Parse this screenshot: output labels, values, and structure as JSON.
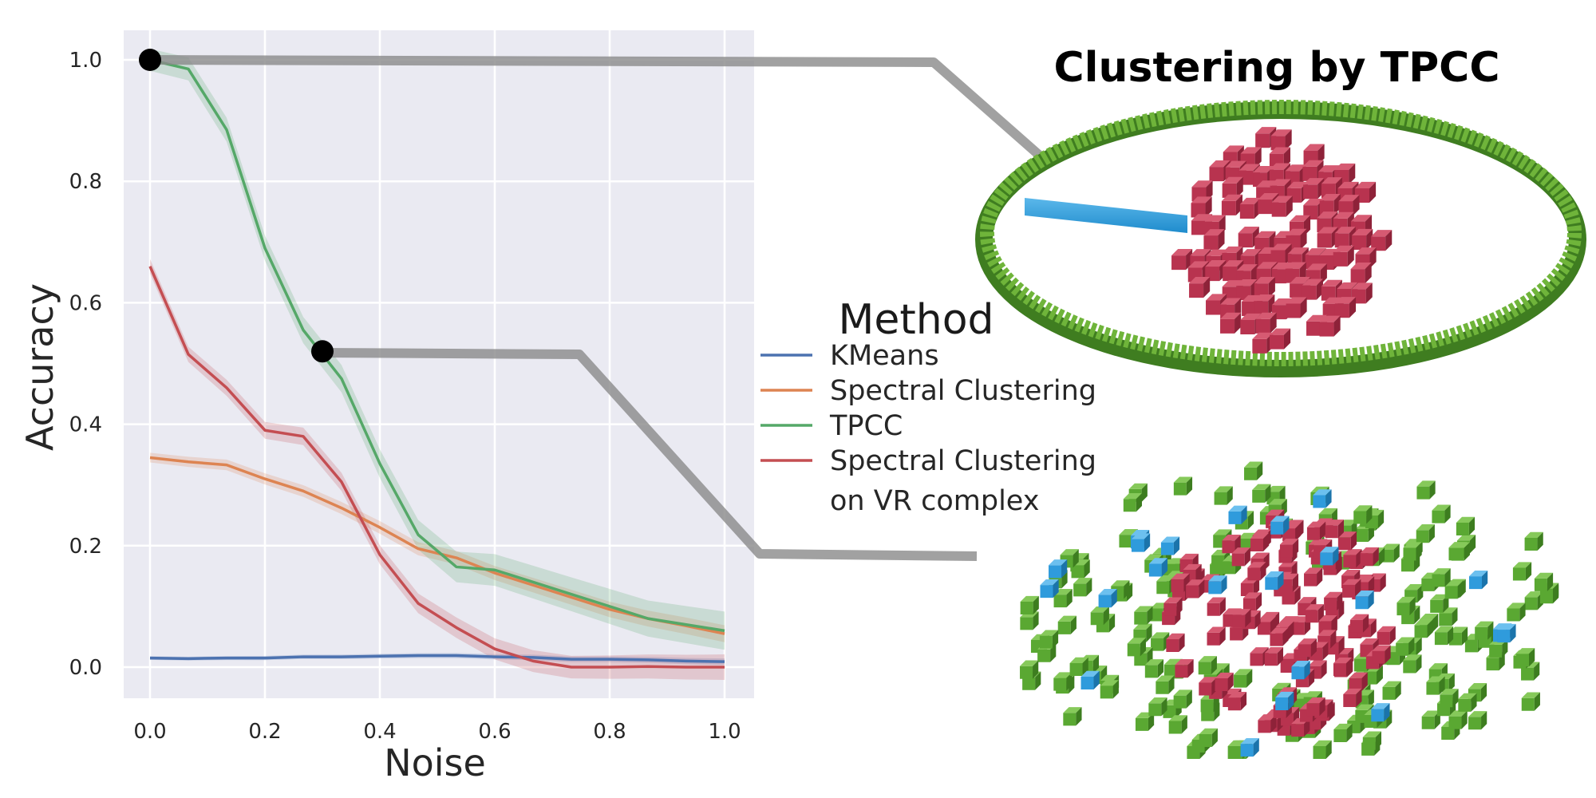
{
  "chart_data": {
    "type": "line",
    "title": "Clustering by TPCC",
    "xlabel": "Noise",
    "ylabel": "Accuracy",
    "xlim": [
      0.0,
      1.0
    ],
    "ylim": [
      -0.05,
      1.05
    ],
    "xticks": [
      "0.0",
      "0.2",
      "0.4",
      "0.6",
      "0.8",
      "1.0"
    ],
    "yticks": [
      "0.0",
      "0.2",
      "0.4",
      "0.6",
      "0.8",
      "1.0"
    ],
    "grid": true,
    "legend": {
      "title": "Method",
      "position": "center-right"
    },
    "x": [
      0.0,
      0.0667,
      0.1333,
      0.2,
      0.2667,
      0.3333,
      0.4,
      0.4667,
      0.5333,
      0.6,
      0.6667,
      0.7333,
      0.8,
      0.8667,
      0.9333,
      1.0
    ],
    "series": [
      {
        "name": "KMeans",
        "color": "#4c72b0",
        "values": [
          0.015,
          0.014,
          0.015,
          0.015,
          0.017,
          0.017,
          0.018,
          0.019,
          0.019,
          0.017,
          0.016,
          0.013,
          0.013,
          0.012,
          0.01,
          0.009
        ]
      },
      {
        "name": "Spectral Clustering",
        "color": "#dd8452",
        "values": [
          0.345,
          0.338,
          0.333,
          0.31,
          0.29,
          0.262,
          0.23,
          0.195,
          0.18,
          0.155,
          0.135,
          0.115,
          0.095,
          0.08,
          0.068,
          0.055
        ]
      },
      {
        "name": "TPCC",
        "color": "#55a868",
        "values": [
          1.0,
          0.985,
          0.885,
          0.69,
          0.555,
          0.475,
          0.335,
          0.218,
          0.165,
          0.16,
          0.14,
          0.12,
          0.1,
          0.08,
          0.07,
          0.06
        ]
      },
      {
        "name": "Spectral Clustering on VR complex",
        "legend_lines": [
          "Spectral Clustering",
          "on VR complex"
        ],
        "color": "#c44e52",
        "values": [
          0.66,
          0.515,
          0.46,
          0.39,
          0.38,
          0.305,
          0.185,
          0.105,
          0.065,
          0.03,
          0.01,
          0.0,
          0.0,
          0.001,
          0.0,
          0.0
        ]
      }
    ],
    "highlighted_points": [
      {
        "x": 0.0,
        "y": 1.0
      },
      {
        "x": 0.3,
        "y": 0.52
      }
    ]
  }
}
